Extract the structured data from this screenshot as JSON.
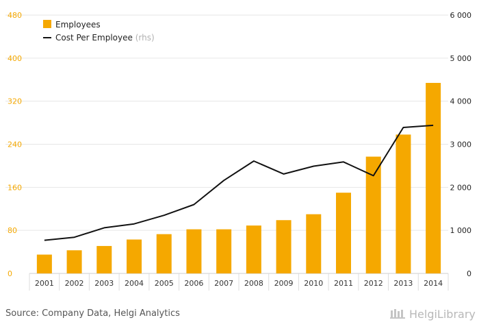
{
  "chart_data": {
    "type": "bar",
    "categories": [
      "2001",
      "2002",
      "2003",
      "2004",
      "2005",
      "2006",
      "2007",
      "2008",
      "2009",
      "2010",
      "2011",
      "2012",
      "2013",
      "2014"
    ],
    "series": [
      {
        "name": "Employees",
        "type": "bar",
        "axis": "left",
        "color": "#F5A800",
        "values": [
          35,
          43,
          51,
          63,
          73,
          82,
          82,
          89,
          99,
          110,
          150,
          217,
          258,
          354
        ]
      },
      {
        "name": "Cost Per Employee",
        "name_suffix": "(rhs)",
        "type": "line",
        "axis": "right",
        "color": "#111111",
        "values": [
          770,
          840,
          1060,
          1150,
          1350,
          1600,
          2160,
          2610,
          2310,
          2490,
          2590,
          2270,
          3390,
          3440
        ]
      }
    ],
    "y_left": {
      "min": 0,
      "max": 480,
      "ticks": [
        "0",
        "80",
        "160",
        "240",
        "320",
        "400",
        "480"
      ],
      "color": "#F5A800"
    },
    "y_right": {
      "min": 0,
      "max": 6000,
      "ticks": [
        "0",
        "1 000",
        "2 000",
        "3 000",
        "4 000",
        "5 000",
        "6 000"
      ],
      "color": "#222222"
    },
    "grid": true,
    "legend_position": "top-left"
  },
  "footer": {
    "source": "Source: Company Data, Helgi Analytics",
    "brand": "HelgiLibrary"
  }
}
